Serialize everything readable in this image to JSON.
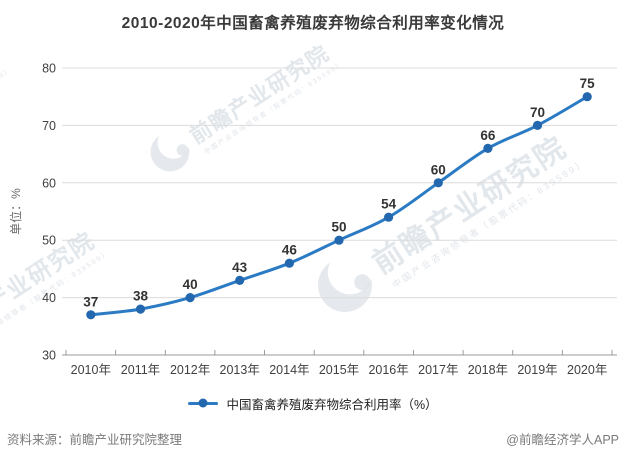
{
  "title": "2010-2020年中国畜禽养殖废弃物综合利用率变化情况",
  "y_axis_unit": "单位：%",
  "legend": {
    "label": "中国畜禽养殖废弃物综合利用率（%）"
  },
  "footer": {
    "source": "资料来源：前瞻产业研究院整理",
    "brand": "@前瞻经济学人APP"
  },
  "watermark": {
    "text": "前瞻产业研究院",
    "subtext": "中国产业咨询领导者（股票代码：839599）"
  },
  "colors": {
    "line": "#2B7BC4",
    "marker": "#2368AE",
    "data_label": "#333333",
    "grid": "#DCDCDC",
    "axis": "#9B9B9B",
    "tick_label": "#404040",
    "title": "#3A3A3A",
    "footer_text": "#7A7A7A",
    "watermark": "#DEE3E9"
  },
  "chart_data": {
    "type": "line",
    "categories": [
      "2010年",
      "2011年",
      "2012年",
      "2013年",
      "2014年",
      "2015年",
      "2016年",
      "2017年",
      "2018年",
      "2019年",
      "2020年"
    ],
    "series": [
      {
        "name": "中国畜禽养殖废弃物综合利用率（%）",
        "values": [
          37,
          38,
          40,
          43,
          46,
          50,
          54,
          60,
          66,
          70,
          75
        ]
      }
    ],
    "title": "2010-2020年中国畜禽养殖废弃物综合利用率变化情况",
    "xlabel": "",
    "ylabel": "单位：%",
    "ylim": [
      30,
      80
    ],
    "yticks": [
      30,
      40,
      50,
      60,
      70,
      80
    ],
    "grid": true,
    "smooth": true,
    "data_labels": true,
    "legend_position": "bottom"
  }
}
